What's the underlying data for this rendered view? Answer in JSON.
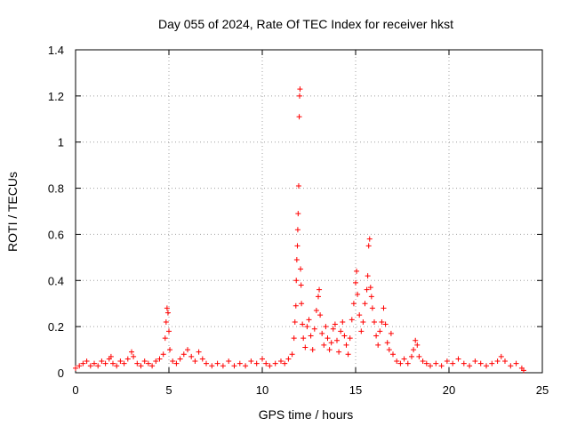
{
  "chart_data": {
    "type": "scatter",
    "title": "Day 055 of 2024, Rate Of TEC Index for receiver hkst",
    "xlabel": "GPS time / hours",
    "ylabel": "ROTI / TECUs",
    "xlim": [
      0,
      25
    ],
    "ylim": [
      0,
      1.4
    ],
    "x_ticks": [
      "0",
      "5",
      "10",
      "15",
      "20",
      "25"
    ],
    "y_ticks": [
      "0",
      "0.2",
      "0.4",
      "0.6",
      "0.8",
      "1",
      "1.2",
      "1.4"
    ],
    "grid": true,
    "marker": "plus",
    "colors": {
      "series": "#ff0000"
    },
    "series": [
      {
        "points": [
          [
            0.0,
            0.02
          ],
          [
            0.2,
            0.03
          ],
          [
            0.4,
            0.04
          ],
          [
            0.6,
            0.05
          ],
          [
            0.8,
            0.03
          ],
          [
            1.0,
            0.04
          ],
          [
            1.2,
            0.03
          ],
          [
            1.4,
            0.05
          ],
          [
            1.6,
            0.04
          ],
          [
            1.8,
            0.06
          ],
          [
            1.9,
            0.07
          ],
          [
            2.0,
            0.04
          ],
          [
            2.2,
            0.03
          ],
          [
            2.4,
            0.05
          ],
          [
            2.6,
            0.04
          ],
          [
            2.8,
            0.06
          ],
          [
            3.0,
            0.09
          ],
          [
            3.1,
            0.07
          ],
          [
            3.3,
            0.04
          ],
          [
            3.5,
            0.03
          ],
          [
            3.7,
            0.05
          ],
          [
            3.9,
            0.04
          ],
          [
            4.1,
            0.03
          ],
          [
            4.3,
            0.05
          ],
          [
            4.5,
            0.06
          ],
          [
            4.7,
            0.08
          ],
          [
            4.8,
            0.15
          ],
          [
            4.85,
            0.22
          ],
          [
            4.9,
            0.28
          ],
          [
            4.95,
            0.26
          ],
          [
            5.0,
            0.18
          ],
          [
            5.05,
            0.1
          ],
          [
            5.2,
            0.05
          ],
          [
            5.4,
            0.04
          ],
          [
            5.6,
            0.06
          ],
          [
            5.8,
            0.08
          ],
          [
            6.0,
            0.1
          ],
          [
            6.2,
            0.07
          ],
          [
            6.4,
            0.05
          ],
          [
            6.6,
            0.09
          ],
          [
            6.8,
            0.06
          ],
          [
            7.0,
            0.04
          ],
          [
            7.3,
            0.03
          ],
          [
            7.6,
            0.04
          ],
          [
            7.9,
            0.03
          ],
          [
            8.2,
            0.05
          ],
          [
            8.5,
            0.03
          ],
          [
            8.8,
            0.04
          ],
          [
            9.1,
            0.03
          ],
          [
            9.4,
            0.05
          ],
          [
            9.7,
            0.04
          ],
          [
            10.0,
            0.06
          ],
          [
            10.2,
            0.04
          ],
          [
            10.4,
            0.03
          ],
          [
            10.7,
            0.04
          ],
          [
            11.0,
            0.05
          ],
          [
            11.2,
            0.04
          ],
          [
            11.4,
            0.06
          ],
          [
            11.6,
            0.08
          ],
          [
            11.7,
            0.15
          ],
          [
            11.75,
            0.22
          ],
          [
            11.8,
            0.29
          ],
          [
            11.82,
            0.4
          ],
          [
            11.85,
            0.49
          ],
          [
            11.88,
            0.55
          ],
          [
            11.9,
            0.62
          ],
          [
            11.92,
            0.69
          ],
          [
            11.95,
            0.81
          ],
          [
            11.98,
            1.11
          ],
          [
            12.0,
            1.2
          ],
          [
            12.02,
            1.23
          ],
          [
            12.05,
            0.45
          ],
          [
            12.08,
            0.38
          ],
          [
            12.1,
            0.3
          ],
          [
            12.15,
            0.21
          ],
          [
            12.2,
            0.15
          ],
          [
            12.3,
            0.11
          ],
          [
            12.4,
            0.2
          ],
          [
            12.5,
            0.23
          ],
          [
            12.6,
            0.16
          ],
          [
            12.7,
            0.1
          ],
          [
            12.8,
            0.19
          ],
          [
            12.9,
            0.27
          ],
          [
            13.0,
            0.33
          ],
          [
            13.05,
            0.36
          ],
          [
            13.1,
            0.25
          ],
          [
            13.2,
            0.17
          ],
          [
            13.3,
            0.12
          ],
          [
            13.4,
            0.2
          ],
          [
            13.5,
            0.15
          ],
          [
            13.6,
            0.1
          ],
          [
            13.7,
            0.13
          ],
          [
            13.8,
            0.19
          ],
          [
            13.9,
            0.21
          ],
          [
            14.0,
            0.14
          ],
          [
            14.1,
            0.09
          ],
          [
            14.2,
            0.18
          ],
          [
            14.3,
            0.22
          ],
          [
            14.4,
            0.16
          ],
          [
            14.5,
            0.12
          ],
          [
            14.6,
            0.08
          ],
          [
            14.7,
            0.15
          ],
          [
            14.8,
            0.23
          ],
          [
            14.9,
            0.3
          ],
          [
            15.0,
            0.39
          ],
          [
            15.05,
            0.44
          ],
          [
            15.1,
            0.34
          ],
          [
            15.2,
            0.25
          ],
          [
            15.3,
            0.18
          ],
          [
            15.4,
            0.22
          ],
          [
            15.5,
            0.3
          ],
          [
            15.6,
            0.36
          ],
          [
            15.65,
            0.42
          ],
          [
            15.7,
            0.55
          ],
          [
            15.75,
            0.58
          ],
          [
            15.8,
            0.37
          ],
          [
            15.85,
            0.33
          ],
          [
            15.9,
            0.28
          ],
          [
            16.0,
            0.22
          ],
          [
            16.1,
            0.16
          ],
          [
            16.2,
            0.12
          ],
          [
            16.3,
            0.18
          ],
          [
            16.4,
            0.22
          ],
          [
            16.5,
            0.28
          ],
          [
            16.6,
            0.21
          ],
          [
            16.7,
            0.13
          ],
          [
            16.8,
            0.1
          ],
          [
            16.9,
            0.17
          ],
          [
            17.0,
            0.08
          ],
          [
            17.2,
            0.05
          ],
          [
            17.4,
            0.04
          ],
          [
            17.6,
            0.06
          ],
          [
            17.8,
            0.04
          ],
          [
            18.0,
            0.07
          ],
          [
            18.1,
            0.1
          ],
          [
            18.2,
            0.14
          ],
          [
            18.3,
            0.12
          ],
          [
            18.4,
            0.07
          ],
          [
            18.6,
            0.05
          ],
          [
            18.8,
            0.04
          ],
          [
            19.0,
            0.03
          ],
          [
            19.3,
            0.04
          ],
          [
            19.6,
            0.03
          ],
          [
            19.9,
            0.05
          ],
          [
            20.2,
            0.04
          ],
          [
            20.5,
            0.06
          ],
          [
            20.8,
            0.04
          ],
          [
            21.1,
            0.03
          ],
          [
            21.4,
            0.05
          ],
          [
            21.7,
            0.04
          ],
          [
            22.0,
            0.03
          ],
          [
            22.3,
            0.04
          ],
          [
            22.6,
            0.05
          ],
          [
            22.8,
            0.07
          ],
          [
            23.0,
            0.05
          ],
          [
            23.3,
            0.03
          ],
          [
            23.6,
            0.04
          ],
          [
            23.9,
            0.02
          ],
          [
            24.0,
            0.01
          ]
        ]
      }
    ]
  }
}
